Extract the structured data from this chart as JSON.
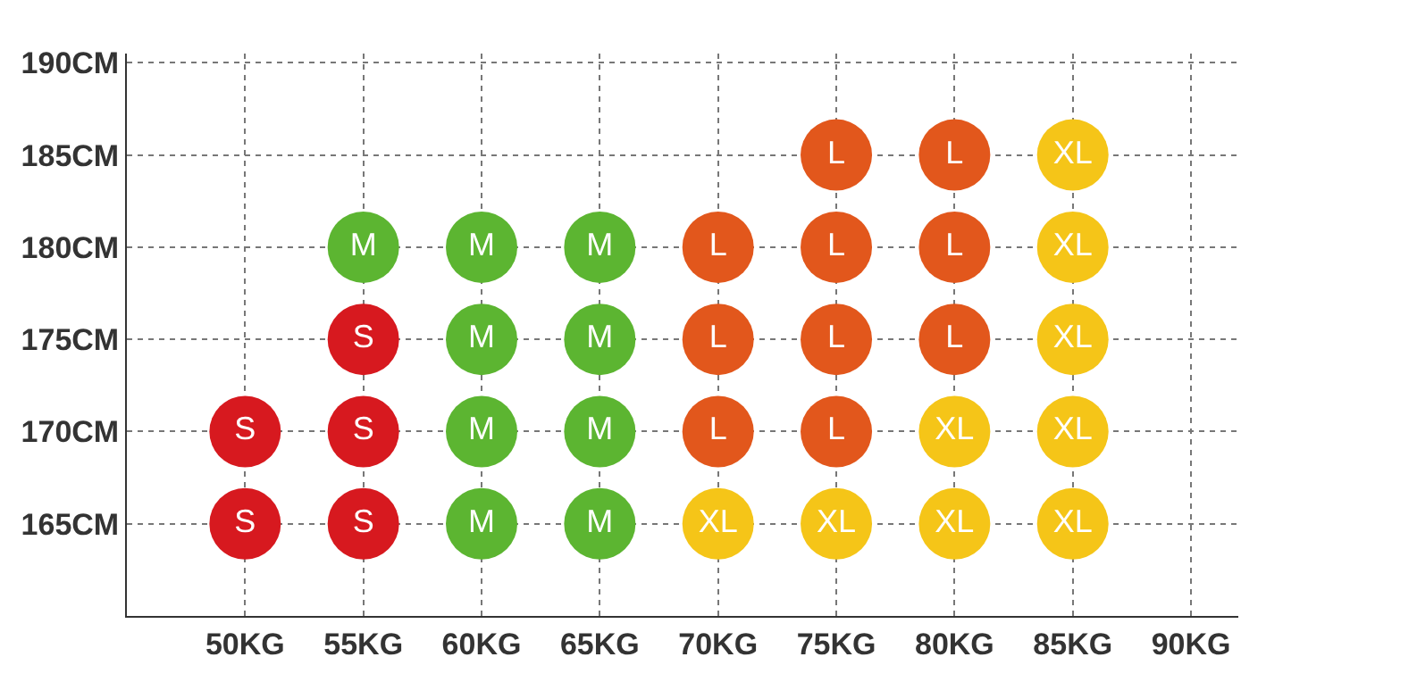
{
  "chart_data": {
    "type": "scatter",
    "marker": "circle",
    "grid": true,
    "xlim": [
      45,
      92
    ],
    "ylim": [
      160,
      190.5
    ],
    "xticks": [
      {
        "value": 50,
        "label": "50KG"
      },
      {
        "value": 55,
        "label": "55KG"
      },
      {
        "value": 60,
        "label": "60KG"
      },
      {
        "value": 65,
        "label": "65KG"
      },
      {
        "value": 70,
        "label": "70KG"
      },
      {
        "value": 75,
        "label": "75KG"
      },
      {
        "value": 80,
        "label": "80KG"
      },
      {
        "value": 85,
        "label": "85KG"
      },
      {
        "value": 90,
        "label": "90KG"
      }
    ],
    "yticks": [
      {
        "value": 165,
        "label": "165CM"
      },
      {
        "value": 170,
        "label": "170CM"
      },
      {
        "value": 175,
        "label": "175CM"
      },
      {
        "value": 180,
        "label": "180CM"
      },
      {
        "value": 185,
        "label": "185CM"
      },
      {
        "value": 190,
        "label": "190CM"
      }
    ],
    "series": [
      {
        "name": "S",
        "color": "#d7191f",
        "x": [
          50,
          50,
          55,
          55,
          55
        ],
        "values": [
          165,
          170,
          165,
          170,
          175
        ]
      },
      {
        "name": "M",
        "color": "#5cb531",
        "x": [
          55,
          60,
          60,
          60,
          60,
          65,
          65,
          65,
          65
        ],
        "values": [
          180,
          165,
          170,
          175,
          180,
          165,
          170,
          175,
          180
        ]
      },
      {
        "name": "L",
        "color": "#e2571c",
        "x": [
          70,
          70,
          70,
          75,
          75,
          75,
          75,
          80,
          80,
          80
        ],
        "values": [
          170,
          175,
          180,
          170,
          175,
          180,
          185,
          175,
          180,
          185
        ]
      },
      {
        "name": "XL",
        "color": "#f5c518",
        "x": [
          70,
          75,
          80,
          80,
          85,
          85,
          85,
          85,
          85
        ],
        "values": [
          165,
          165,
          165,
          170,
          165,
          170,
          175,
          180,
          185
        ]
      }
    ]
  }
}
